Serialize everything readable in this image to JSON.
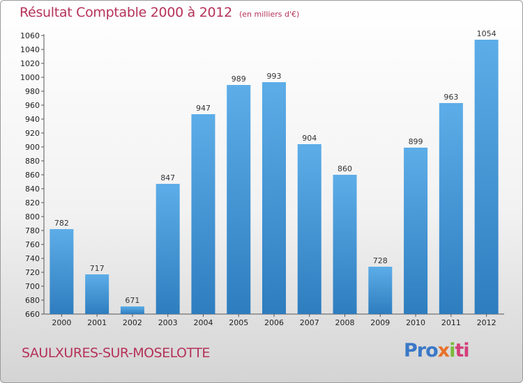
{
  "header": {
    "title": "Résultat Comptable 2000 à 2012",
    "subtitle": "(en milliers d'€)"
  },
  "footer": {
    "commune": "SAULXURES-SUR-MOSELOTTE",
    "logo": [
      "Pro",
      "x",
      "i",
      "ti"
    ]
  },
  "colors": {
    "bar_top": "#5dade8",
    "bar_bottom": "#2e7dbf",
    "title": "#b5325a"
  },
  "chart_data": {
    "type": "bar",
    "title": "Résultat Comptable 2000 à 2012",
    "subtitle": "(en milliers d'€)",
    "categories": [
      "2000",
      "2001",
      "2002",
      "2003",
      "2004",
      "2005",
      "2006",
      "2007",
      "2008",
      "2009",
      "2010",
      "2011",
      "2012"
    ],
    "values": [
      782,
      717,
      671,
      847,
      947,
      989,
      993,
      904,
      860,
      728,
      899,
      963,
      1054
    ],
    "xlabel": "",
    "ylabel": "",
    "ylim": [
      660,
      1060
    ],
    "ytick_step": 20,
    "grid": false,
    "legend": "none"
  }
}
